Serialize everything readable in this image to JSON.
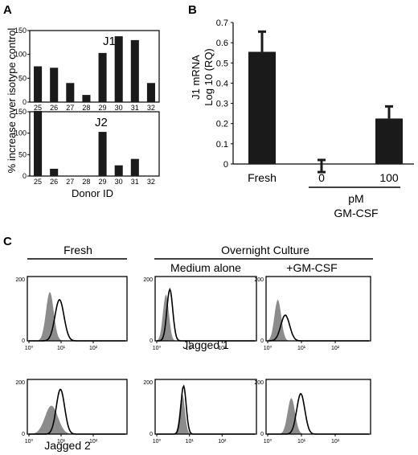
{
  "panels": {
    "a": "A",
    "b": "B",
    "c": "C"
  },
  "colors": {
    "bar": "#1a1a1a",
    "filled_hist": "#8c8c8c",
    "outline_hist": "#000000"
  },
  "panel_c": {
    "fresh_header": "Fresh",
    "overnight_header": "Overnight Culture",
    "medium_label": "Medium alone",
    "gmcsf_label": "+GM-CSF",
    "row1_label": "Jagged 1",
    "row2_label": "Jagged 2",
    "y_top_tick": "200",
    "y_zero_tick": "0",
    "x_ticks": [
      "10⁰",
      "10¹",
      "10²"
    ]
  },
  "chart_data": [
    {
      "id": "A-J1",
      "type": "bar",
      "title": "J1",
      "categories": [
        "25",
        "26",
        "27",
        "28",
        "29",
        "30",
        "31",
        "32"
      ],
      "values": [
        75,
        72,
        40,
        15,
        103,
        138,
        130,
        40
      ],
      "ylim": [
        0,
        150
      ],
      "yticks": [
        0,
        50,
        100,
        150
      ],
      "ylabel": "% increase over isotype control"
    },
    {
      "id": "A-J2",
      "type": "bar",
      "title": "J2",
      "categories": [
        "25",
        "26",
        "27",
        "28",
        "29",
        "30",
        "31",
        "32"
      ],
      "values": [
        152,
        17,
        0,
        0,
        103,
        25,
        40,
        0
      ],
      "ylim": [
        0,
        150
      ],
      "yticks": [
        0,
        50,
        100,
        150
      ],
      "xlabel": "Donor ID"
    },
    {
      "id": "B",
      "type": "bar",
      "ylabel": "J1 mRNA Log 10 (RQ)",
      "categories": [
        "Fresh",
        "0",
        "100"
      ],
      "values": [
        0.555,
        -0.01,
        0.225
      ],
      "errors": [
        0.1,
        0.03,
        0.06
      ],
      "ylim": [
        0,
        0.7
      ],
      "yticks": [
        "0",
        "0.1",
        "0.2",
        "0.3",
        "0.4",
        "0.5",
        "0.6",
        "0.7"
      ],
      "group_label_line1": "pM",
      "group_label_line2": "GM-CSF"
    }
  ]
}
